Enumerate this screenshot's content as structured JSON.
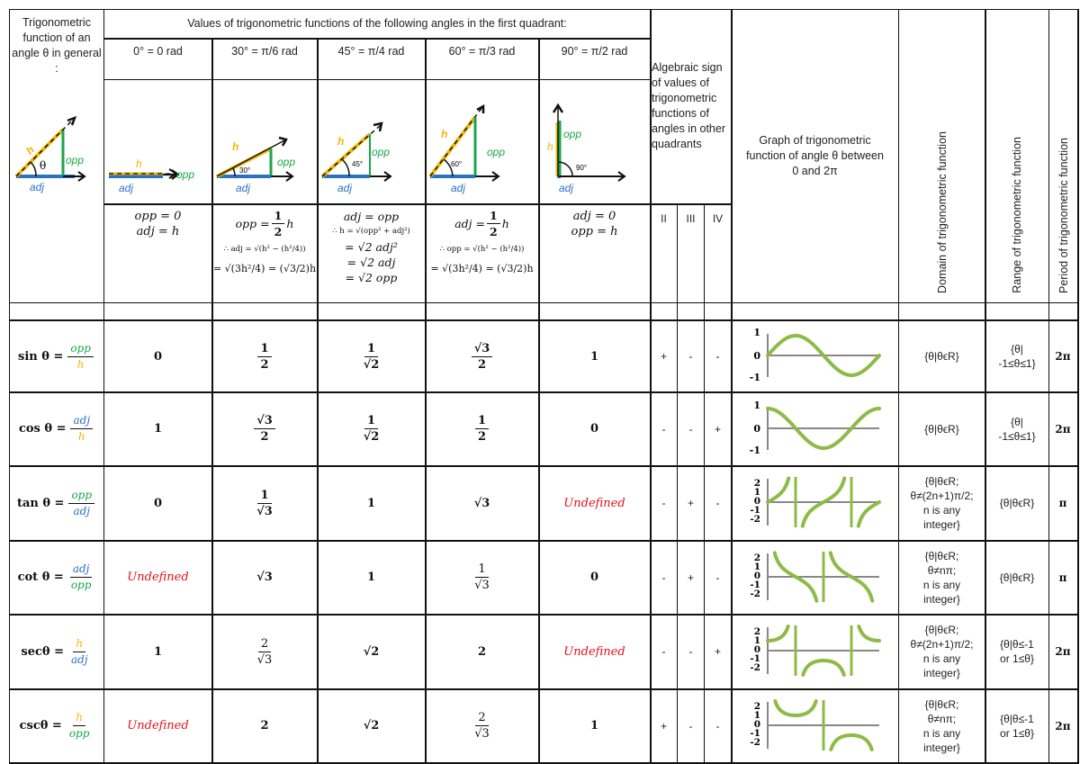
{
  "header": {
    "general_label": "Trigonometric function of an angle θ in general :",
    "values_title": "Values of trigonometric functions of the following angles in the first quadrant:",
    "angles": [
      {
        "label": "0° = 0 rad",
        "angle_deg": 0,
        "angle_text": ""
      },
      {
        "label": "30° = π/6 rad",
        "angle_deg": 30,
        "angle_text": "30°"
      },
      {
        "label": "45° = π/4 rad",
        "angle_deg": 45,
        "angle_text": "45°"
      },
      {
        "label": "60° = π/3 rad",
        "angle_deg": 60,
        "angle_text": "60°"
      },
      {
        "label": "90° = π/2 rad",
        "angle_deg": 90,
        "angle_text": "90°"
      }
    ],
    "sign_title": "Algebraic sign of values of trigonometric functions of angles in other quadrants",
    "quadrants": [
      "II",
      "III",
      "IV"
    ],
    "graph_title": "Graph of trigonometric function of angle θ between 0 and 2π",
    "domain_title": "Domain of trigonometric function",
    "range_title": "Range of trigonometric function",
    "period_title": "Period of trigonometric function"
  },
  "diagram_labels": {
    "h": "h",
    "opp": "opp",
    "adj": "adj",
    "theta": "θ"
  },
  "colors": {
    "hyp": "#f2b705",
    "opp": "#1aa64a",
    "adj": "#2a72c4",
    "graph": "#8dbb45",
    "axis": "#888888",
    "undefined": "#e8101a",
    "border": "#111111"
  },
  "derivations": {
    "a0": [
      "opp = 0",
      "adj = h"
    ],
    "a30": {
      "line1_lhs": "opp =",
      "line1_num": "1",
      "line1_den": "2",
      "line1_tail": "h",
      "line2": "∴ adj = √(h² − (h²/4))",
      "line3": "= √(3h²/4) = (√3/2)h"
    },
    "a45": [
      "adj = opp",
      "∴ h = √(opp² + adj²)",
      "= √2 adj²",
      "= √2 adj",
      "= √2 opp"
    ],
    "a60": {
      "line1_lhs": "adj =",
      "line1_num": "1",
      "line1_den": "2",
      "line1_tail": "h",
      "line2": "∴ opp = √(h² − (h²/4))",
      "line3": "= √(3h²/4) = (√3/2)h"
    },
    "a90": [
      "adj = 0",
      "opp = h"
    ]
  },
  "rows": [
    {
      "fn": "sin θ =",
      "num": "opp",
      "num_color": "green",
      "den": "h",
      "den_color": "yellow",
      "values": [
        {
          "t": "0"
        },
        {
          "n": "1",
          "d": "2"
        },
        {
          "n": "1",
          "d": "√2"
        },
        {
          "n": "√3",
          "d": "2"
        },
        {
          "t": "1"
        }
      ],
      "signs": [
        "+",
        "-",
        "-"
      ],
      "graph": "sin",
      "y_ticks": [
        "1",
        "0",
        "-1"
      ],
      "domain": [
        "{θ|θϵR}"
      ],
      "range": [
        "{θ|",
        "-1≤θ≤1}"
      ],
      "period": "2π"
    },
    {
      "fn": "cos θ =",
      "num": "adj",
      "num_color": "blue",
      "den": "h",
      "den_color": "yellow",
      "values": [
        {
          "t": "1"
        },
        {
          "n": "√3",
          "d": "2"
        },
        {
          "n": "1",
          "d": "√2"
        },
        {
          "n": "1",
          "d": "2"
        },
        {
          "t": "0"
        }
      ],
      "signs": [
        "-",
        "-",
        "+"
      ],
      "graph": "cos",
      "y_ticks": [
        "1",
        "0",
        "-1"
      ],
      "domain": [
        "{θ|θϵR}"
      ],
      "range": [
        "{θ|",
        "-1≤θ≤1}"
      ],
      "period": "2π"
    },
    {
      "fn": "tan θ =",
      "num": "opp",
      "num_color": "green",
      "den": "adj",
      "den_color": "blue",
      "values": [
        {
          "t": "0"
        },
        {
          "n": "1",
          "d": "√3"
        },
        {
          "t": "1"
        },
        {
          "t": "√3"
        },
        {
          "u": "Undefined"
        }
      ],
      "signs": [
        "-",
        "+",
        "-"
      ],
      "graph": "tan",
      "y_ticks": [
        "2",
        "1",
        "0",
        "-1",
        "-2"
      ],
      "domain": [
        "{θ|θϵR;",
        "θ≠(2n+1)π/2;",
        "n is any",
        "integer}"
      ],
      "range": [
        "{θ|θϵR}"
      ],
      "period": "π"
    },
    {
      "fn": "cot θ =",
      "num": "adj",
      "num_color": "blue",
      "den": "opp",
      "den_color": "green",
      "values": [
        {
          "u": "Undefined"
        },
        {
          "t": "√3"
        },
        {
          "t": "1"
        },
        {
          "n": "1",
          "d": "√3"
        },
        {
          "t": "0"
        }
      ],
      "signs": [
        "-",
        "+",
        "-"
      ],
      "graph": "cot",
      "y_ticks": [
        "2",
        "1",
        "0",
        "-1",
        "-2"
      ],
      "domain": [
        "{θ|θϵR;",
        "θ≠nπ;",
        "n is any",
        "integer}"
      ],
      "range": [
        "{θ|θϵR}"
      ],
      "period": "π"
    },
    {
      "fn": "secθ =",
      "num": "h",
      "num_color": "yellow",
      "den": "adj",
      "den_color": "blue",
      "values": [
        {
          "t": "1"
        },
        {
          "n": "2",
          "d": "√3"
        },
        {
          "t": "√2"
        },
        {
          "t": "2"
        },
        {
          "u": "Undefined"
        }
      ],
      "signs": [
        "-",
        "-",
        "+"
      ],
      "graph": "sec",
      "y_ticks": [
        "2",
        "1",
        "0",
        "-1",
        "-2"
      ],
      "domain": [
        "{θ|θϵR;",
        "θ≠(2n+1)π/2;",
        "n is any",
        "integer}"
      ],
      "range": [
        "{θ|θ≤-1",
        "or 1≤θ}"
      ],
      "period": "2π"
    },
    {
      "fn": "cscθ =",
      "num": "h",
      "num_color": "yellow",
      "den": "opp",
      "den_color": "green",
      "values": [
        {
          "u": "Undefined"
        },
        {
          "t": "2"
        },
        {
          "t": "√2"
        },
        {
          "n": "2",
          "d": "√3"
        },
        {
          "t": "1"
        }
      ],
      "signs": [
        "+",
        "-",
        "-"
      ],
      "graph": "csc",
      "y_ticks": [
        "2",
        "1",
        "0",
        "-1",
        "-2"
      ],
      "domain": [
        "{θ|θϵR;",
        "θ≠nπ;",
        "n is any",
        "integer}"
      ],
      "range": [
        "{θ|θ≤-1",
        "or 1≤θ}"
      ],
      "period": "2π"
    }
  ]
}
